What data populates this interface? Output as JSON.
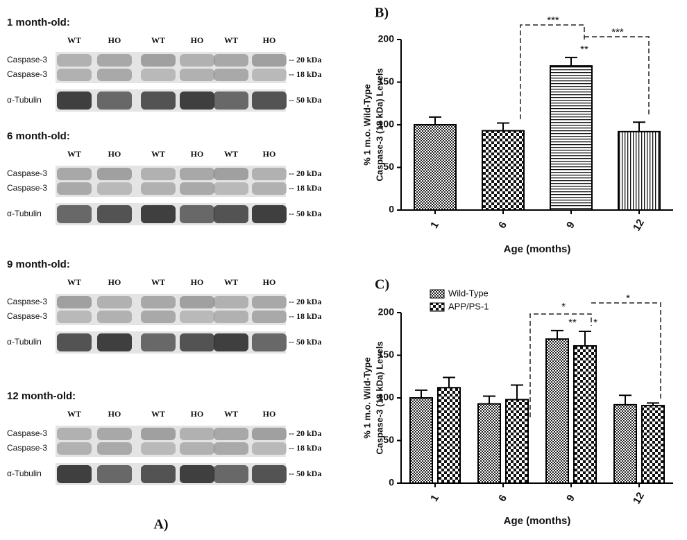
{
  "blots": {
    "label": "A)",
    "panels": [
      {
        "title": "1 month-old:",
        "lanes": [
          "WT",
          "HO",
          "WT",
          "HO",
          "WT",
          "HO"
        ],
        "rows": [
          "Caspase-3",
          "Caspase-3",
          "α-Tubulin"
        ],
        "sizes": [
          "-- 20 kDa",
          "-- 18 kDa",
          "-- 50 kDa"
        ]
      },
      {
        "title": "6 month-old:",
        "lanes": [
          "WT",
          "HO",
          "WT",
          "HO",
          "WT",
          "HO"
        ],
        "rows": [
          "Caspase-3",
          "Caspase-3",
          "α-Tubulin"
        ],
        "sizes": [
          "-- 20 kDa",
          "-- 18 kDa",
          "-- 50 kDa"
        ]
      },
      {
        "title": "9 month-old:",
        "lanes": [
          "WT",
          "HO",
          "WT",
          "HO",
          "WT",
          "HO"
        ],
        "rows": [
          "Caspase-3",
          "Caspase-3",
          "α-Tubulin"
        ],
        "sizes": [
          "-- 20 kDa",
          "-- 18 kDa",
          "-- 50 kDa"
        ]
      },
      {
        "title": "12 month-old:",
        "lanes": [
          "WT",
          "HO",
          "WT",
          "HO",
          "WT",
          "HO"
        ],
        "rows": [
          "Caspase-3",
          "Caspase-3",
          "α-Tubulin"
        ],
        "sizes": [
          "-- 20 kDa",
          "-- 18 kDa",
          "-- 50 kDa"
        ]
      }
    ]
  },
  "chart_data": [
    {
      "type": "bar",
      "panel_label": "B)",
      "ylabel": [
        "% 1 m.o. Wild-Type",
        "Caspase-3 (18 kDa) Levels"
      ],
      "xlabel": "Age (months)",
      "categories": [
        "1",
        "6",
        "9",
        "12"
      ],
      "values": [
        100,
        93,
        169,
        92
      ],
      "errors": [
        9,
        9,
        10,
        11
      ],
      "patterns": [
        "crosshatch",
        "checker",
        "horizontal",
        "vertical"
      ],
      "ylim": [
        0,
        200
      ],
      "yticks": [
        0,
        50,
        100,
        150,
        200
      ],
      "annotations": [
        "**",
        "***",
        "***"
      ]
    },
    {
      "type": "grouped-bar",
      "panel_label": "C)",
      "ylabel": [
        "% 1 m.o. Wild-Type",
        "Caspase-3 (18 kDa) Levels"
      ],
      "xlabel": "Age (months)",
      "categories": [
        "1",
        "6",
        "9",
        "12"
      ],
      "series": [
        {
          "name": "Wild-Type",
          "pattern": "crosshatch",
          "values": [
            100,
            93,
            169,
            92
          ],
          "errors": [
            9,
            9,
            10,
            11
          ]
        },
        {
          "name": "APP/PS-1",
          "pattern": "checker",
          "values": [
            112,
            98,
            161,
            91
          ],
          "errors": [
            12,
            17,
            17,
            3
          ]
        }
      ],
      "legend": "upper-left",
      "ylim": [
        0,
        200
      ],
      "yticks": [
        0,
        50,
        100,
        150,
        200
      ],
      "annotations": [
        "**",
        "*",
        "*",
        "*"
      ]
    }
  ]
}
